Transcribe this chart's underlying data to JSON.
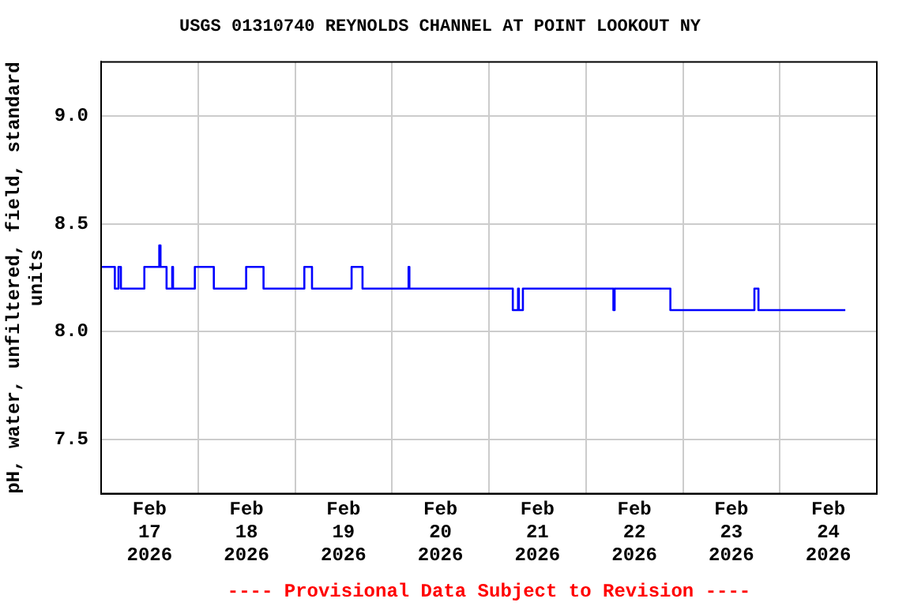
{
  "chart_data": {
    "type": "step",
    "title": "USGS 01310740 REYNOLDS CHANNEL AT POINT LOOKOUT NY",
    "ylabel": "pH, water, unfiltered, field, standard units",
    "annotations": [
      "---- Provisional Data Subject to Revision ----"
    ],
    "x": [
      "2026-02-17T00:00",
      "2026-02-17T03:24",
      "2026-02-17T04:18",
      "2026-02-17T04:54",
      "2026-02-17T10:42",
      "2026-02-17T14:24",
      "2026-02-17T14:42",
      "2026-02-17T16:12",
      "2026-02-17T17:36",
      "2026-02-17T17:48",
      "2026-02-17T23:12",
      "2026-02-18T03:54",
      "2026-02-18T11:54",
      "2026-02-18T16:12",
      "2026-02-19T02:18",
      "2026-02-19T04:12",
      "2026-02-19T14:00",
      "2026-02-19T16:42",
      "2026-02-20T04:06",
      "2026-02-20T04:18",
      "2026-02-21T05:54",
      "2026-02-21T07:12",
      "2026-02-21T07:24",
      "2026-02-21T08:24",
      "2026-02-22T06:48",
      "2026-02-22T07:06",
      "2026-02-22T20:54",
      "2026-02-23T17:42",
      "2026-02-23T18:42",
      "2026-02-24T16:12"
    ],
    "series": [
      {
        "color": "#0000ff",
        "values": [
          8.3,
          8.2,
          8.3,
          8.2,
          8.3,
          8.4,
          8.3,
          8.2,
          8.3,
          8.2,
          8.3,
          8.2,
          8.3,
          8.2,
          8.3,
          8.2,
          8.3,
          8.2,
          8.3,
          8.2,
          8.1,
          8.2,
          8.1,
          8.2,
          8.1,
          8.2,
          8.1,
          8.2,
          8.1,
          8.1
        ]
      }
    ],
    "xlim": [
      "2026-02-17T00:00",
      "2026-02-25T00:00"
    ],
    "xticks": [
      {
        "value": "2026-02-17T12:00",
        "label": "Feb 17 2026"
      },
      {
        "value": "2026-02-18T00:00",
        "label": null
      },
      {
        "value": "2026-02-18T12:00",
        "label": "Feb 18 2026"
      },
      {
        "value": "2026-02-19T00:00",
        "label": null
      },
      {
        "value": "2026-02-19T12:00",
        "label": "Feb 19 2026"
      },
      {
        "value": "2026-02-20T00:00",
        "label": null
      },
      {
        "value": "2026-02-20T12:00",
        "label": "Feb 20 2026"
      },
      {
        "value": "2026-02-21T00:00",
        "label": null
      },
      {
        "value": "2026-02-21T12:00",
        "label": "Feb 21 2026"
      },
      {
        "value": "2026-02-22T00:00",
        "label": null
      },
      {
        "value": "2026-02-22T12:00",
        "label": "Feb 22 2026"
      },
      {
        "value": "2026-02-23T00:00",
        "label": null
      },
      {
        "value": "2026-02-23T12:00",
        "label": "Feb 23 2026"
      },
      {
        "value": "2026-02-24T00:00",
        "label": null
      },
      {
        "value": "2026-02-24T12:00",
        "label": "Feb 24 2026"
      }
    ],
    "ylim": [
      7.25,
      9.25
    ],
    "yticks": [
      {
        "value": 7.5,
        "label": "7.5"
      },
      {
        "value": 8.0,
        "label": "8.0"
      },
      {
        "value": 8.5,
        "label": "8.5"
      },
      {
        "value": 9.0,
        "label": "9.0"
      }
    ],
    "grid": true,
    "legend": false,
    "marker": "none",
    "line_style": "solid"
  }
}
